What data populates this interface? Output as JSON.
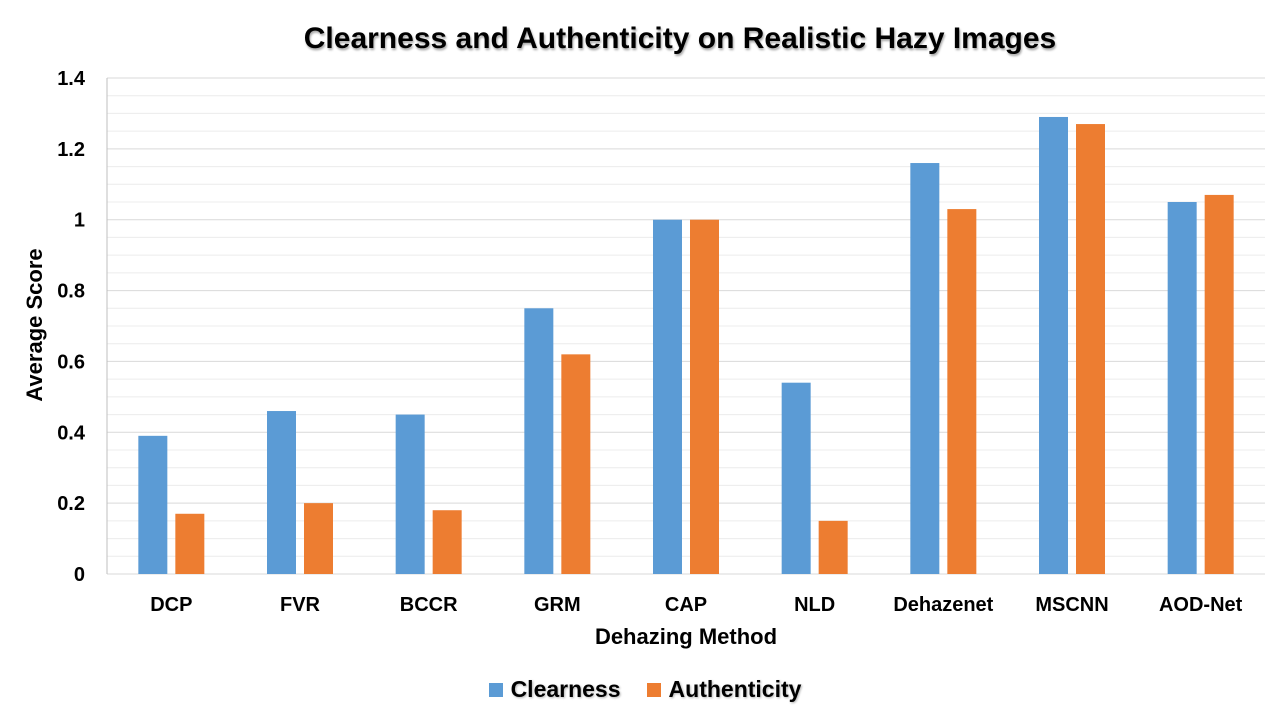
{
  "chart_data": {
    "type": "bar",
    "title": "Clearness and Authenticity on Realistic Hazy Images",
    "xlabel": "Dehazing Method",
    "ylabel": "Average Score",
    "ylim": [
      0,
      1.4
    ],
    "yticks": [
      "0",
      "0.2",
      "0.4",
      "0.6",
      "0.8",
      "1",
      "1.2",
      "1.4"
    ],
    "categories": [
      "DCP",
      "FVR",
      "BCCR",
      "GRM",
      "CAP",
      "NLD",
      "Dehazenet",
      "MSCNN",
      "AOD-Net"
    ],
    "series": [
      {
        "name": "Clearness",
        "color": "#5B9BD5",
        "values": [
          0.39,
          0.46,
          0.45,
          0.75,
          1.0,
          0.54,
          1.16,
          1.29,
          1.05
        ]
      },
      {
        "name": "Authenticity",
        "color": "#ED7D31",
        "values": [
          0.17,
          0.2,
          0.18,
          0.62,
          1.0,
          0.15,
          1.03,
          1.27,
          1.07
        ]
      }
    ],
    "grid": true,
    "legend_position": "bottom"
  }
}
